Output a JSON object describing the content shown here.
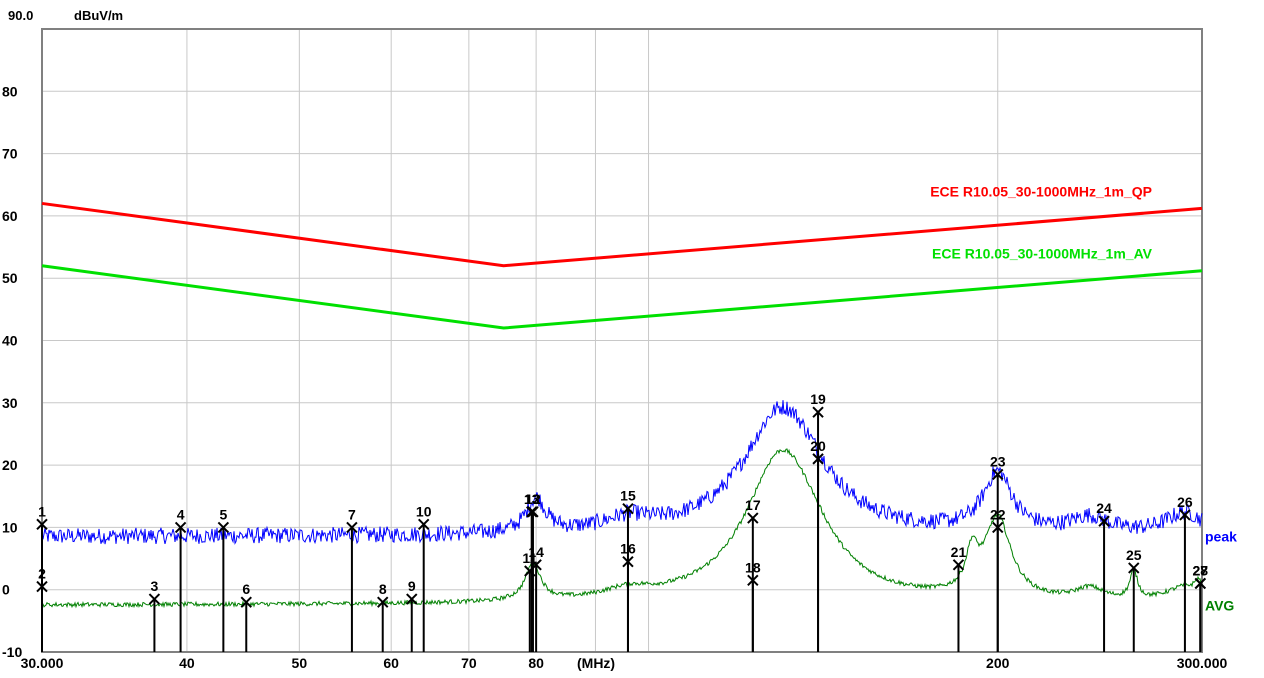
{
  "chart_data": {
    "type": "line",
    "title": "",
    "ylabel": "dBuV/m",
    "xlabel": "(MHz)",
    "x_scale": "log",
    "xlim": [
      30,
      300
    ],
    "ylim": [
      -10,
      90
    ],
    "grid": true,
    "y_top_label": "90.0",
    "y_ticks": [
      {
        "value": 80,
        "label": "80"
      },
      {
        "value": 70,
        "label": "70"
      },
      {
        "value": 60,
        "label": "60"
      },
      {
        "value": 50,
        "label": "50"
      },
      {
        "value": 40,
        "label": "40"
      },
      {
        "value": 30,
        "label": "30"
      },
      {
        "value": 20,
        "label": "20"
      },
      {
        "value": 10,
        "label": "10"
      },
      {
        "value": 0,
        "label": "0"
      },
      {
        "value": -10,
        "label": "-10"
      }
    ],
    "x_grid_values": [
      30,
      40,
      50,
      60,
      70,
      80,
      90,
      100,
      200,
      300
    ],
    "x_ticks": [
      {
        "value": 30,
        "label": "30.000"
      },
      {
        "value": 40,
        "label": "40"
      },
      {
        "value": 50,
        "label": "50"
      },
      {
        "value": 60,
        "label": "60"
      },
      {
        "value": 70,
        "label": "70"
      },
      {
        "value": 80,
        "label": "80"
      },
      {
        "value": 200,
        "label": "200"
      },
      {
        "value": 300,
        "label": "300.000"
      }
    ],
    "limit_lines": [
      {
        "name": "ECE R10.05_30-1000MHz_1m_QP",
        "color": "#ff0000",
        "points": [
          [
            30,
            62
          ],
          [
            75,
            52
          ],
          [
            300,
            61.2
          ]
        ]
      },
      {
        "name": "ECE R10.05_30-1000MHz_1m_AV",
        "color": "#00e000",
        "points": [
          [
            30,
            52
          ],
          [
            75,
            42
          ],
          [
            300,
            51.2
          ]
        ]
      }
    ],
    "series": [
      {
        "name": "peak",
        "color": "#0000ff",
        "baseline": 8.5,
        "noise": 1.3,
        "peaks": [
          [
            80,
            5.5,
            0.01
          ],
          [
            96,
            2,
            0.025
          ],
          [
            130,
            19.5,
            0.04
          ],
          [
            200,
            9.5,
            0.015
          ],
          [
            240,
            2.5,
            0.02
          ],
          [
            290,
            3.5,
            0.02
          ],
          [
            138,
            2,
            0.03
          ]
        ]
      },
      {
        "name": "AVG",
        "color": "#008000",
        "baseline": -2.5,
        "noise": 0.35,
        "peaks": [
          [
            79.5,
            6,
            0.008
          ],
          [
            96,
            1.5,
            0.025
          ],
          [
            130,
            23,
            0.038
          ],
          [
            200,
            13,
            0.014
          ],
          [
            190,
            6,
            0.006
          ],
          [
            240,
            2,
            0.015
          ],
          [
            262,
            4.5,
            0.004
          ],
          [
            290,
            2.5,
            0.02
          ],
          [
            298,
            2,
            0.004
          ],
          [
            138,
            3,
            0.03
          ]
        ]
      }
    ],
    "markers": [
      {
        "label": "1",
        "freq": 30.0,
        "level": 10.5
      },
      {
        "label": "2",
        "freq": 30.0,
        "level": 0.5
      },
      {
        "label": "3",
        "freq": 37.5,
        "level": -1.5
      },
      {
        "label": "4",
        "freq": 39.5,
        "level": 10.0
      },
      {
        "label": "5",
        "freq": 43.0,
        "level": 10.0
      },
      {
        "label": "6",
        "freq": 45.0,
        "level": -2.0
      },
      {
        "label": "7",
        "freq": 55.5,
        "level": 10.0
      },
      {
        "label": "8",
        "freq": 59.0,
        "level": -2.0
      },
      {
        "label": "9",
        "freq": 62.5,
        "level": -1.5
      },
      {
        "label": "10",
        "freq": 64.0,
        "level": 10.5
      },
      {
        "label": "11",
        "freq": 79.0,
        "level": 3.0
      },
      {
        "label": "12",
        "freq": 79.5,
        "level": 12.5
      },
      {
        "label": "13",
        "freq": 79.3,
        "level": 12.5
      },
      {
        "label": "14",
        "freq": 80.0,
        "level": 4.0
      },
      {
        "label": "15",
        "freq": 96.0,
        "level": 13.0
      },
      {
        "label": "16",
        "freq": 96.0,
        "level": 4.5
      },
      {
        "label": "17",
        "freq": 123.0,
        "level": 11.5
      },
      {
        "label": "18",
        "freq": 123.0,
        "level": 1.5
      },
      {
        "label": "19",
        "freq": 140.0,
        "level": 28.5
      },
      {
        "label": "20",
        "freq": 140.0,
        "level": 21.0
      },
      {
        "label": "21",
        "freq": 185.0,
        "level": 4.0
      },
      {
        "label": "22",
        "freq": 200.0,
        "level": 10.0
      },
      {
        "label": "23",
        "freq": 200.0,
        "level": 18.5
      },
      {
        "label": "24",
        "freq": 247.0,
        "level": 11.0
      },
      {
        "label": "25",
        "freq": 262.0,
        "level": 3.5
      },
      {
        "label": "26",
        "freq": 290.0,
        "level": 12.0
      },
      {
        "label": "27",
        "freq": 299.0,
        "level": 1.0
      },
      {
        "label": "28",
        "freq": 299.0,
        "level": 1.0
      }
    ]
  }
}
